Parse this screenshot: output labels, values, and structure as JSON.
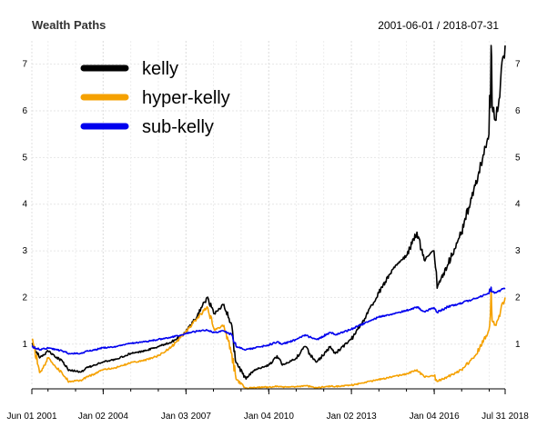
{
  "chart_data": {
    "type": "line",
    "title": "Wealth Paths",
    "date_range": "2001-06-01 / 2018-07-31",
    "xlabel": "",
    "ylabel": "",
    "x_ticks": [
      {
        "date": "2001-06-01",
        "label": "Jun 01 2001"
      },
      {
        "date": "2004-01-02",
        "label": "Jan 02 2004"
      },
      {
        "date": "2007-01-03",
        "label": "Jan 03 2007"
      },
      {
        "date": "2010-01-04",
        "label": "Jan 04 2010"
      },
      {
        "date": "2013-01-02",
        "label": "Jan 02 2013"
      },
      {
        "date": "2016-01-04",
        "label": "Jan 04 2016"
      },
      {
        "date": "2018-07-31",
        "label": "Jul 31 2018"
      }
    ],
    "y_ticks": [
      "1",
      "2",
      "3",
      "4",
      "5",
      "6",
      "7"
    ],
    "y_tick_values": [
      1,
      2,
      3,
      4,
      5,
      6,
      7
    ],
    "ylim": [
      0.1,
      7.5
    ],
    "grid": true,
    "legend_position": "top-left",
    "series": [
      {
        "name": "kelly",
        "color": "#000000",
        "points": [
          [
            "2001-06-01",
            1.0
          ],
          [
            "2001-09-21",
            0.72
          ],
          [
            "2002-01-02",
            0.85
          ],
          [
            "2002-07-15",
            0.62
          ],
          [
            "2002-10-09",
            0.45
          ],
          [
            "2003-03-11",
            0.4
          ],
          [
            "2003-06-16",
            0.5
          ],
          [
            "2003-12-31",
            0.62
          ],
          [
            "2004-06-30",
            0.68
          ],
          [
            "2004-12-31",
            0.8
          ],
          [
            "2005-06-30",
            0.85
          ],
          [
            "2005-12-30",
            0.95
          ],
          [
            "2006-06-30",
            1.05
          ],
          [
            "2006-12-29",
            1.25
          ],
          [
            "2007-06-01",
            1.6
          ],
          [
            "2007-10-09",
            2.0
          ],
          [
            "2008-01-15",
            1.65
          ],
          [
            "2008-05-19",
            1.85
          ],
          [
            "2008-09-01",
            1.4
          ],
          [
            "2008-10-27",
            0.6
          ],
          [
            "2009-03-09",
            0.25
          ],
          [
            "2009-06-30",
            0.45
          ],
          [
            "2009-12-31",
            0.55
          ],
          [
            "2010-04-23",
            0.75
          ],
          [
            "2010-07-02",
            0.55
          ],
          [
            "2010-12-31",
            0.7
          ],
          [
            "2011-04-29",
            0.95
          ],
          [
            "2011-08-08",
            0.7
          ],
          [
            "2011-10-03",
            0.62
          ],
          [
            "2012-03-30",
            0.95
          ],
          [
            "2012-06-01",
            0.8
          ],
          [
            "2012-12-31",
            1.1
          ],
          [
            "2013-06-28",
            1.55
          ],
          [
            "2013-12-31",
            2.1
          ],
          [
            "2014-06-30",
            2.6
          ],
          [
            "2014-12-31",
            2.9
          ],
          [
            "2015-05-20",
            3.4
          ],
          [
            "2015-08-24",
            2.8
          ],
          [
            "2015-12-31",
            3.0
          ],
          [
            "2016-02-11",
            2.2
          ],
          [
            "2016-06-30",
            2.7
          ],
          [
            "2016-12-30",
            3.4
          ],
          [
            "2017-06-30",
            4.4
          ],
          [
            "2017-12-29",
            5.5
          ],
          [
            "2018-01-26",
            7.4
          ],
          [
            "2018-02-08",
            6.1
          ],
          [
            "2018-04-02",
            5.8
          ],
          [
            "2018-05-31",
            6.6
          ],
          [
            "2018-07-31",
            7.4
          ]
        ]
      },
      {
        "name": "hyper-kelly",
        "color": "#f5a100",
        "points": [
          [
            "2001-06-01",
            1.1
          ],
          [
            "2001-09-21",
            0.4
          ],
          [
            "2002-01-02",
            0.7
          ],
          [
            "2002-07-15",
            0.35
          ],
          [
            "2002-10-09",
            0.2
          ],
          [
            "2003-03-11",
            0.22
          ],
          [
            "2003-06-16",
            0.3
          ],
          [
            "2003-12-31",
            0.45
          ],
          [
            "2004-06-30",
            0.5
          ],
          [
            "2004-12-31",
            0.6
          ],
          [
            "2005-06-30",
            0.65
          ],
          [
            "2005-12-30",
            0.75
          ],
          [
            "2006-06-30",
            0.95
          ],
          [
            "2006-12-29",
            1.25
          ],
          [
            "2007-06-01",
            1.55
          ],
          [
            "2007-10-09",
            1.8
          ],
          [
            "2008-01-15",
            1.3
          ],
          [
            "2008-05-19",
            1.4
          ],
          [
            "2008-09-01",
            0.8
          ],
          [
            "2008-10-27",
            0.25
          ],
          [
            "2009-03-09",
            0.05
          ],
          [
            "2009-06-30",
            0.07
          ],
          [
            "2009-12-31",
            0.08
          ],
          [
            "2010-04-23",
            0.1
          ],
          [
            "2010-07-02",
            0.08
          ],
          [
            "2010-12-31",
            0.09
          ],
          [
            "2011-04-29",
            0.11
          ],
          [
            "2011-08-08",
            0.08
          ],
          [
            "2011-10-03",
            0.07
          ],
          [
            "2012-03-30",
            0.1
          ],
          [
            "2012-06-01",
            0.09
          ],
          [
            "2012-12-31",
            0.12
          ],
          [
            "2013-06-28",
            0.18
          ],
          [
            "2013-12-31",
            0.24
          ],
          [
            "2014-06-30",
            0.3
          ],
          [
            "2014-12-31",
            0.36
          ],
          [
            "2015-05-20",
            0.45
          ],
          [
            "2015-08-24",
            0.3
          ],
          [
            "2015-12-31",
            0.32
          ],
          [
            "2016-02-11",
            0.2
          ],
          [
            "2016-06-30",
            0.3
          ],
          [
            "2016-12-30",
            0.45
          ],
          [
            "2017-06-30",
            0.75
          ],
          [
            "2017-12-29",
            1.3
          ],
          [
            "2018-01-26",
            2.2
          ],
          [
            "2018-02-08",
            1.5
          ],
          [
            "2018-04-02",
            1.4
          ],
          [
            "2018-05-31",
            1.7
          ],
          [
            "2018-07-31",
            2.0
          ]
        ]
      },
      {
        "name": "sub-kelly",
        "color": "#0000ee",
        "points": [
          [
            "2001-06-01",
            0.95
          ],
          [
            "2001-09-21",
            0.88
          ],
          [
            "2002-01-02",
            0.92
          ],
          [
            "2002-07-15",
            0.85
          ],
          [
            "2002-10-09",
            0.8
          ],
          [
            "2003-03-11",
            0.8
          ],
          [
            "2003-06-16",
            0.85
          ],
          [
            "2003-12-31",
            0.92
          ],
          [
            "2004-06-30",
            0.95
          ],
          [
            "2004-12-31",
            1.02
          ],
          [
            "2005-06-30",
            1.05
          ],
          [
            "2005-12-30",
            1.1
          ],
          [
            "2006-06-30",
            1.15
          ],
          [
            "2006-12-29",
            1.22
          ],
          [
            "2007-06-01",
            1.28
          ],
          [
            "2007-10-09",
            1.3
          ],
          [
            "2008-01-15",
            1.25
          ],
          [
            "2008-05-19",
            1.28
          ],
          [
            "2008-09-01",
            1.2
          ],
          [
            "2008-10-27",
            0.95
          ],
          [
            "2009-03-09",
            0.88
          ],
          [
            "2009-06-30",
            0.92
          ],
          [
            "2009-12-31",
            0.98
          ],
          [
            "2010-04-23",
            1.05
          ],
          [
            "2010-07-02",
            1.0
          ],
          [
            "2010-12-31",
            1.1
          ],
          [
            "2011-04-29",
            1.2
          ],
          [
            "2011-08-08",
            1.12
          ],
          [
            "2011-10-03",
            1.1
          ],
          [
            "2012-03-30",
            1.25
          ],
          [
            "2012-06-01",
            1.2
          ],
          [
            "2012-12-31",
            1.32
          ],
          [
            "2013-06-28",
            1.45
          ],
          [
            "2013-12-31",
            1.58
          ],
          [
            "2014-06-30",
            1.65
          ],
          [
            "2014-12-31",
            1.72
          ],
          [
            "2015-05-20",
            1.8
          ],
          [
            "2015-08-24",
            1.7
          ],
          [
            "2015-12-31",
            1.78
          ],
          [
            "2016-02-11",
            1.68
          ],
          [
            "2016-06-30",
            1.8
          ],
          [
            "2016-12-30",
            1.88
          ],
          [
            "2017-06-30",
            1.98
          ],
          [
            "2017-12-29",
            2.08
          ],
          [
            "2018-01-26",
            2.22
          ],
          [
            "2018-02-08",
            2.12
          ],
          [
            "2018-04-02",
            2.1
          ],
          [
            "2018-05-31",
            2.15
          ],
          [
            "2018-07-31",
            2.2
          ]
        ]
      }
    ]
  }
}
